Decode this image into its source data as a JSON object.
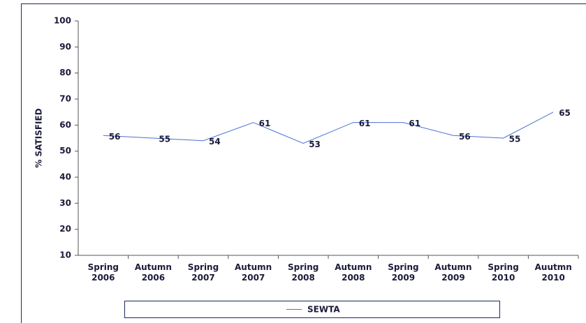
{
  "chart_data": {
    "type": "line",
    "y_label": "% SATISFIED",
    "categories": [
      "Spring 2006",
      "Autumn 2006",
      "Spring 2007",
      "Autumn 2007",
      "Spring 2008",
      "Autumn 2008",
      "Spring 2009",
      "Autumn 2009",
      "Spring 2010",
      "Auutmn 2010"
    ],
    "series": [
      {
        "name": "SEWTA",
        "color": "#4a6fd8",
        "values": [
          56,
          55,
          54,
          61,
          53,
          61,
          61,
          56,
          55,
          65
        ]
      }
    ],
    "ylim": [
      10,
      100
    ],
    "yticks": [
      10,
      20,
      30,
      40,
      50,
      60,
      70,
      80,
      90,
      100
    ],
    "legend": "bottom",
    "grid": false
  }
}
